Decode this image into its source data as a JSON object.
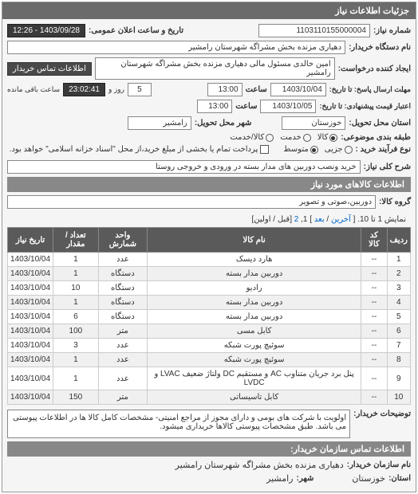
{
  "panel": {
    "title": "جزئیات اطلاعات نیاز"
  },
  "header": {
    "reqno_label": "شماره نیاز:",
    "reqno": "1103110155000004",
    "pubdate_label": "تاریخ و ساعت اعلان عمومی:",
    "pubdate": "1403/09/28 - 12:26",
    "buyer_label": "نام دستگاه خریدار:",
    "buyer": "دهیاری مزنده بخش مشراگه شهرستان رامشیر",
    "requester_label": "ایجاد کننده درخواست:",
    "requester": "امین خالدی مسئول مالی دهیاری مزنده بخش مشراگه شهرستان رامشیر",
    "contact_btn": "اطلاعات تماس خریدار"
  },
  "deadline": {
    "resp_until_label": "مهلت ارسال پاسخ: تا تاریخ:",
    "resp_date": "1403/10/04",
    "time_label": "ساعت",
    "resp_time": "13:00",
    "days_left": "5",
    "days_suffix": "روز و",
    "time_left": "23:02:41",
    "time_suffix": "ساعت باقی مانده",
    "price_until_label": "اعتبار قیمت پیشنهادی: تا تاریخ:",
    "price_date": "1403/10/05",
    "price_time": "13:00"
  },
  "location": {
    "province_label": "استان محل تحویل:",
    "province": "خوزستان",
    "city_label": "شهر محل تحویل:",
    "city": "رامشیر"
  },
  "category": {
    "label": "طبقه بندی موضوعی:",
    "options": [
      "کالا",
      "خدمت",
      "کالا/خدمت"
    ],
    "selected": 0
  },
  "purchase": {
    "label": "نوع فرآیند خرید :",
    "options": [
      "جزیی",
      "متوسط"
    ],
    "selected": 1,
    "checkbox_label": "پرداخت تمام یا بخشی از مبلغ خرید،از محل \"اسناد خزانه اسلامی\" خواهد بود.",
    "checkbox_checked": false
  },
  "subject": {
    "label": "شرح کلی نیاز:",
    "value": "خرید ونصب دوربین های مدار بسته در ورودی و خروجی روستا"
  },
  "goods": {
    "section_title": "اطلاعات کالاهای مورد نیاز",
    "group_label": "گروه کالا:",
    "group_value": "دوربین،صوتی و تصویر",
    "pagination_prefix": "نمایش 1 تا 10. [",
    "pagination_last": "آخرین",
    "pagination_sep": " / ",
    "pagination_next": "بعد",
    "pagination_mid": "] 1, ",
    "pagination_p2": "2",
    "pagination_suffix": " [قبل / اولین]"
  },
  "table": {
    "headers": [
      "ردیف",
      "کد کالا",
      "نام کالا",
      "واحد شمارش",
      "تعداد / مقدار",
      "تاریخ نیاز"
    ],
    "rows": [
      [
        "1",
        "--",
        "هارد دیسک",
        "عدد",
        "1",
        "1403/10/04"
      ],
      [
        "2",
        "--",
        "دوربین مدار بسته",
        "دستگاه",
        "1",
        "1403/10/04"
      ],
      [
        "3",
        "--",
        "رادیو",
        "دستگاه",
        "10",
        "1403/10/04"
      ],
      [
        "4",
        "--",
        "دوربین مدار بسته",
        "دستگاه",
        "1",
        "1403/10/04"
      ],
      [
        "5",
        "--",
        "دوربین مدار بسته",
        "دستگاه",
        "6",
        "1403/10/04"
      ],
      [
        "6",
        "--",
        "کابل مسی",
        "متر",
        "100",
        "1403/10/04"
      ],
      [
        "7",
        "--",
        "سوئیچ پورت شبکه",
        "عدد",
        "3",
        "1403/10/04"
      ],
      [
        "8",
        "--",
        "سوئیچ پورت شبکه",
        "عدد",
        "1",
        "1403/10/04"
      ],
      [
        "9",
        "--",
        "پنل برد جریان متناوب AC و مستقیم DC ولتاژ ضعیف LVAC و LVDC",
        "عدد",
        "1",
        "1403/10/04"
      ],
      [
        "10",
        "--",
        "کابل تاسیساتی",
        "متر",
        "150",
        "1403/10/04"
      ]
    ]
  },
  "notes": {
    "label": "توضیحات خریدار:",
    "value": "اولویت با شرکت های بومی و دارای مجوز از مراجع امنیتی- مشخصات کامل کالا ها در اطلاعات پیوستی می باشد. طبق مشخصات پیوستی کالاها خریداری میشود."
  },
  "footer": {
    "section_title": "اطلاعات تماس سازمان خریدار:",
    "org_label": "نام سازمان خریدار:",
    "org_value": "دهیاری مزنده بخش مشراگه شهرستان رامشیر",
    "province_label": "استان:",
    "province_value": "خوزستان",
    "city_label": "شهر:",
    "city_value": "رامشیر"
  }
}
